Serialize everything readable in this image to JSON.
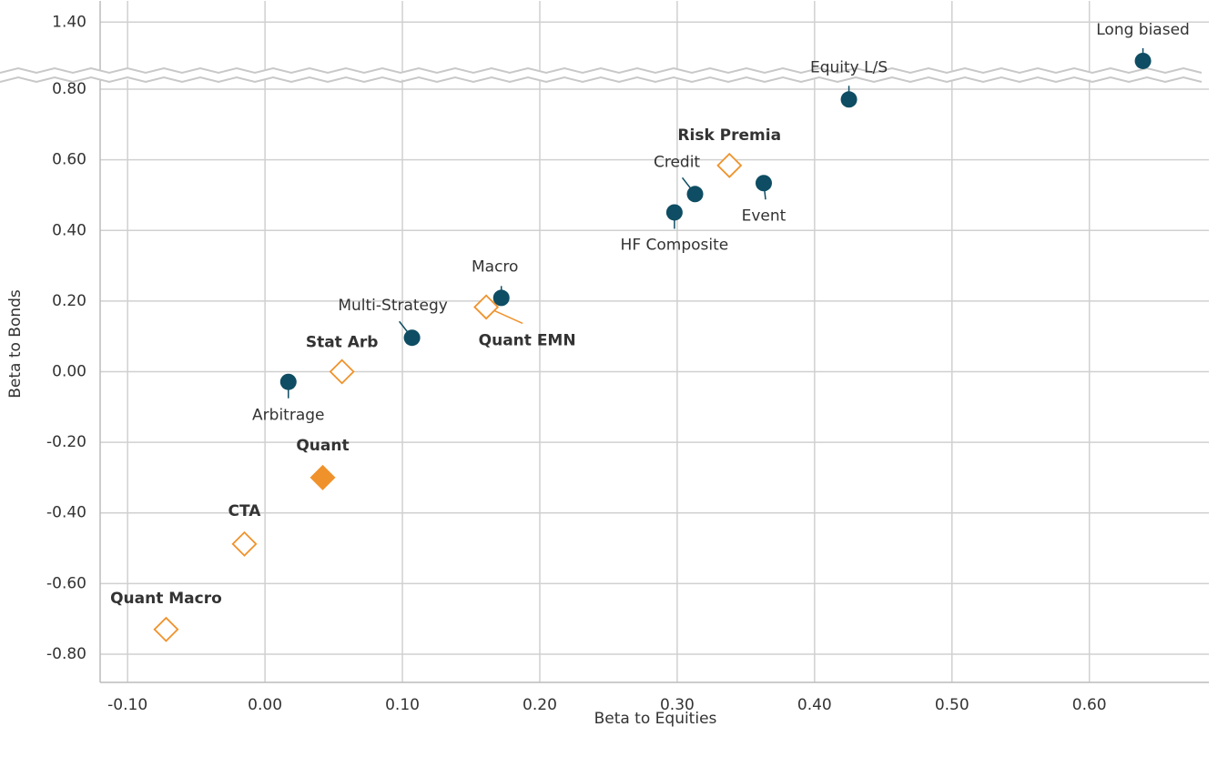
{
  "chart_data": {
    "type": "scatter",
    "x_label": "Beta to Equities",
    "y_label": "Beta to Bonds",
    "xlim": [
      -0.12,
      0.687
    ],
    "ylim": [
      -0.88,
      1.46
    ],
    "ybreak": [
      0.84,
      1.25
    ],
    "xticks": [
      {
        "value": -0.1,
        "label": "-0.10"
      },
      {
        "value": 0,
        "label": "0.00"
      },
      {
        "value": 0.1,
        "label": "0.10"
      },
      {
        "value": 0.2,
        "label": "0.20"
      },
      {
        "value": 0.3,
        "label": "0.30"
      },
      {
        "value": 0.4,
        "label": "0.40"
      },
      {
        "value": 0.5,
        "label": "0.50"
      },
      {
        "value": 0.6,
        "label": "0.60"
      }
    ],
    "yticks": [
      {
        "value": -0.8,
        "label": "-0.80"
      },
      {
        "value": -0.6,
        "label": "-0.60"
      },
      {
        "value": -0.4,
        "label": "-0.40"
      },
      {
        "value": -0.2,
        "label": "-0.20"
      },
      {
        "value": 0,
        "label": "0.00"
      },
      {
        "value": 0.2,
        "label": "0.20"
      },
      {
        "value": 0.4,
        "label": "0.40"
      },
      {
        "value": 0.6,
        "label": "0.60"
      },
      {
        "value": 0.8,
        "label": "0.80"
      },
      {
        "value": 1.4,
        "label": "1.40"
      }
    ],
    "grid": true,
    "colors": {
      "circle": "#0e4d63",
      "diamond": "#f0922b",
      "diamond-filled": "#f0922b"
    },
    "points": [
      {
        "label": "Long biased",
        "x": 0.639,
        "y": 1.29,
        "marker": "circle",
        "bold": false
      },
      {
        "label": "Equity L/S",
        "x": 0.425,
        "y": 0.771,
        "marker": "circle",
        "bold": false
      },
      {
        "label": "Risk Premia",
        "x": 0.338,
        "y": 0.584,
        "marker": "diamond",
        "bold": true
      },
      {
        "label": "Credit",
        "x": 0.313,
        "y": 0.503,
        "marker": "circle",
        "bold": false
      },
      {
        "label": "Event",
        "x": 0.363,
        "y": 0.534,
        "marker": "circle",
        "bold": false
      },
      {
        "label": "HF Composite",
        "x": 0.298,
        "y": 0.451,
        "marker": "circle",
        "bold": false
      },
      {
        "label": "Macro",
        "x": 0.172,
        "y": 0.209,
        "marker": "circle",
        "bold": false
      },
      {
        "label": "Quant EMN",
        "x": 0.161,
        "y": 0.183,
        "marker": "diamond",
        "bold": true
      },
      {
        "label": "Multi-Strategy",
        "x": 0.107,
        "y": 0.096,
        "marker": "circle",
        "bold": false
      },
      {
        "label": "Stat Arb",
        "x": 0.056,
        "y": 0.0,
        "marker": "diamond",
        "bold": true
      },
      {
        "label": "Arbitrage",
        "x": 0.017,
        "y": -0.029,
        "marker": "circle",
        "bold": false
      },
      {
        "label": "Quant",
        "x": 0.042,
        "y": -0.3,
        "marker": "diamond-filled",
        "bold": true
      },
      {
        "label": "CTA",
        "x": -0.015,
        "y": -0.488,
        "marker": "diamond",
        "bold": true
      },
      {
        "label": "Quant Macro",
        "x": -0.072,
        "y": -0.73,
        "marker": "diamond",
        "bold": true
      }
    ]
  }
}
